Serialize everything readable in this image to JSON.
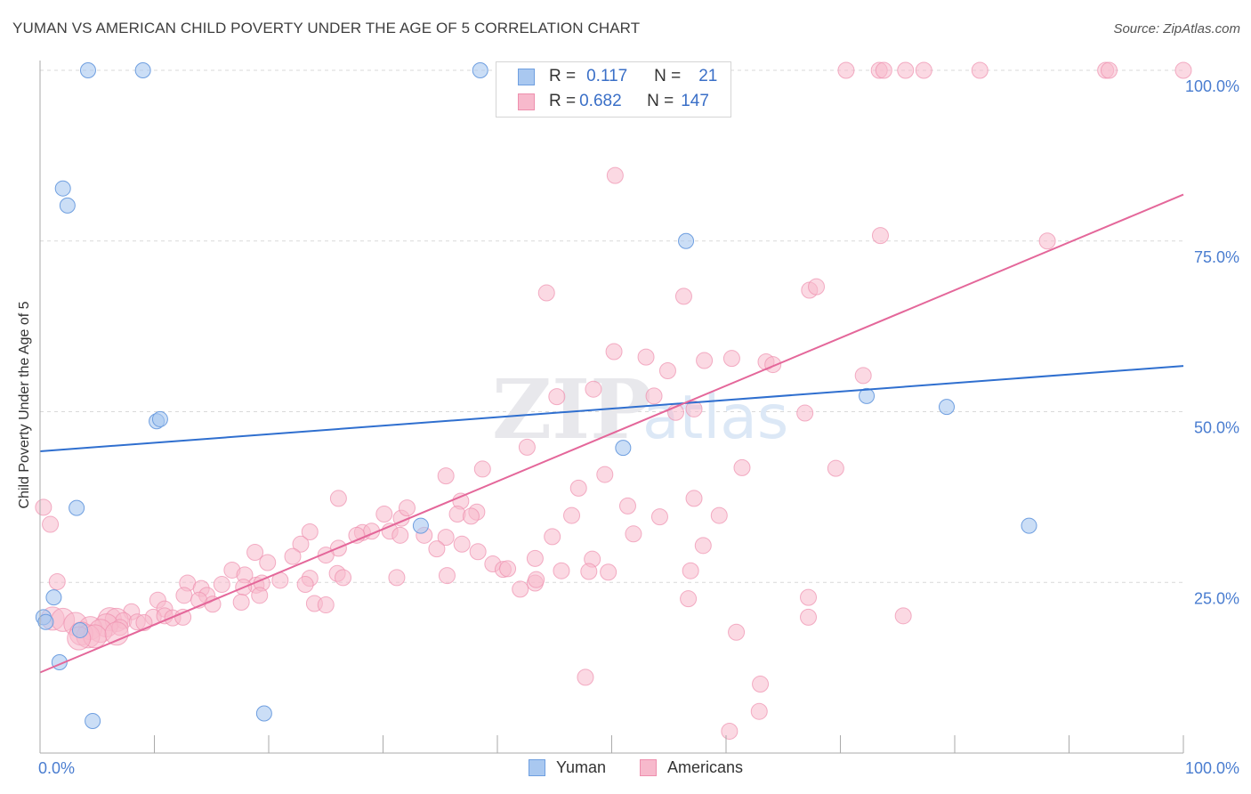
{
  "title": "YUMAN VS AMERICAN CHILD POVERTY UNDER THE AGE OF 5 CORRELATION CHART",
  "source": "Source: ZipAtlas.com",
  "watermark": {
    "zip": "ZIP",
    "atlas": "atlas"
  },
  "colors": {
    "yuman_fill": "#a9c8f0",
    "yuman_stroke": "#6f9fe0",
    "yuman_line": "#2f6fcf",
    "americans_fill": "#f7b9cc",
    "americans_stroke": "#ee8fae",
    "americans_line": "#e4679a",
    "tick_label": "#4a7dd0",
    "grid": "#d9d9d9"
  },
  "stats_legend": {
    "rows": [
      {
        "r_label": "R =",
        "r_value": "0.117",
        "n_label": "N =",
        "n_value": "21"
      },
      {
        "r_label": "R =",
        "r_value": "0.682",
        "n_label": "N =",
        "n_value": "147"
      }
    ]
  },
  "bottom_legend": {
    "yuman": "Yuman",
    "americans": "Americans"
  },
  "chart_data": {
    "type": "scatter",
    "title": "YUMAN VS AMERICAN CHILD POVERTY UNDER THE AGE OF 5 CORRELATION CHART",
    "xlabel": "",
    "ylabel": "Child Poverty Under the Age of 5",
    "xlim": [
      0,
      100
    ],
    "ylim": [
      0,
      100
    ],
    "x_tick_labels": [
      "0.0%",
      "100.0%"
    ],
    "y_tick_labels": [
      "25.0%",
      "50.0%",
      "75.0%",
      "100.0%"
    ],
    "y_ticks": [
      25,
      50,
      75,
      100
    ],
    "grid": true,
    "legend_placement": "bottom-center",
    "series": [
      {
        "name": "Yuman",
        "r": 0.117,
        "n": 21,
        "trend": [
          [
            0,
            44.2
          ],
          [
            100,
            56.7
          ]
        ],
        "points": [
          [
            4.2,
            100
          ],
          [
            9,
            100
          ],
          [
            38.5,
            100
          ],
          [
            2,
            82.7
          ],
          [
            2.4,
            80.2
          ],
          [
            56.5,
            75
          ],
          [
            10.2,
            48.6
          ],
          [
            10.5,
            48.9
          ],
          [
            72.3,
            52.3
          ],
          [
            79.3,
            50.7
          ],
          [
            51,
            44.7
          ],
          [
            3.2,
            35.9
          ],
          [
            33.3,
            33.3
          ],
          [
            86.5,
            33.3
          ],
          [
            0.3,
            19.9
          ],
          [
            0.5,
            19.2
          ],
          [
            1.2,
            22.8
          ],
          [
            3.5,
            18
          ],
          [
            1.7,
            13.3
          ],
          [
            4.6,
            4.7
          ],
          [
            19.6,
            5.8
          ]
        ]
      },
      {
        "name": "Americans",
        "r": 0.682,
        "n": 147,
        "trend": [
          [
            0,
            11.8
          ],
          [
            100,
            81.8
          ]
        ],
        "points": [
          [
            53.8,
            100
          ],
          [
            54.3,
            100
          ],
          [
            70.5,
            100
          ],
          [
            73.4,
            100
          ],
          [
            73.8,
            100
          ],
          [
            75.7,
            100
          ],
          [
            77.3,
            100
          ],
          [
            82.2,
            100
          ],
          [
            93.2,
            100
          ],
          [
            93.5,
            100
          ],
          [
            100,
            100
          ],
          [
            50.3,
            84.6
          ],
          [
            73.5,
            75.8
          ],
          [
            88.1,
            75
          ],
          [
            44.3,
            67.4
          ],
          [
            56.3,
            66.9
          ],
          [
            67.3,
            67.8
          ],
          [
            67.9,
            68.3
          ],
          [
            50.2,
            58.8
          ],
          [
            53,
            58
          ],
          [
            54.9,
            56
          ],
          [
            58.1,
            57.5
          ],
          [
            60.5,
            57.8
          ],
          [
            63.5,
            57.3
          ],
          [
            64.1,
            56.9
          ],
          [
            72,
            55.3
          ],
          [
            45.2,
            52.2
          ],
          [
            48.4,
            53.3
          ],
          [
            53.7,
            52.3
          ],
          [
            57.2,
            50.4
          ],
          [
            66.9,
            49.8
          ],
          [
            42.6,
            44.8
          ],
          [
            38.7,
            41.6
          ],
          [
            35.5,
            40.6
          ],
          [
            49.4,
            40.8
          ],
          [
            61.4,
            41.8
          ],
          [
            69.6,
            41.7
          ],
          [
            47.1,
            38.8
          ],
          [
            26.1,
            37.3
          ],
          [
            36.8,
            36.9
          ],
          [
            38.2,
            35.3
          ],
          [
            51.4,
            36.2
          ],
          [
            57.2,
            37.3
          ],
          [
            30.1,
            35
          ],
          [
            31.6,
            34.4
          ],
          [
            32.1,
            35.9
          ],
          [
            36.5,
            35
          ],
          [
            37.7,
            34.7
          ],
          [
            46.5,
            34.8
          ],
          [
            54.2,
            34.6
          ],
          [
            59.4,
            34.8
          ],
          [
            23.6,
            32.4
          ],
          [
            28.2,
            32.3
          ],
          [
            29,
            32.5
          ],
          [
            30.6,
            32.5
          ],
          [
            31.5,
            31.9
          ],
          [
            33.6,
            31.9
          ],
          [
            22.8,
            30.6
          ],
          [
            26.1,
            30
          ],
          [
            27.7,
            31.9
          ],
          [
            35.5,
            31.6
          ],
          [
            44.8,
            31.7
          ],
          [
            51.9,
            32.1
          ],
          [
            18.8,
            29.4
          ],
          [
            22.1,
            28.8
          ],
          [
            25,
            29
          ],
          [
            34.7,
            29.9
          ],
          [
            36.9,
            30.6
          ],
          [
            38.3,
            29.5
          ],
          [
            58,
            30.4
          ],
          [
            19.9,
            27.9
          ],
          [
            43.3,
            28.5
          ],
          [
            48.3,
            28.4
          ],
          [
            16.8,
            26.8
          ],
          [
            17.9,
            26.1
          ],
          [
            26,
            26.3
          ],
          [
            39.6,
            27.7
          ],
          [
            40.5,
            26.9
          ],
          [
            40.9,
            27
          ],
          [
            45.6,
            26.7
          ],
          [
            49.7,
            26.5
          ],
          [
            56.9,
            26.7
          ],
          [
            12.9,
            24.9
          ],
          [
            15.9,
            24.7
          ],
          [
            18.9,
            24.6
          ],
          [
            19.4,
            24.9
          ],
          [
            21,
            25.3
          ],
          [
            23.6,
            25.6
          ],
          [
            26.5,
            25.7
          ],
          [
            31.2,
            25.7
          ],
          [
            35.6,
            26
          ],
          [
            43.3,
            24.9
          ],
          [
            14.1,
            24.1
          ],
          [
            17.8,
            24.3
          ],
          [
            23.2,
            24.7
          ],
          [
            42,
            24
          ],
          [
            12.6,
            23.1
          ],
          [
            14.6,
            23.1
          ],
          [
            19.2,
            23.1
          ],
          [
            10.3,
            22.4
          ],
          [
            13.9,
            22.4
          ],
          [
            17.6,
            22.1
          ],
          [
            24,
            21.9
          ],
          [
            25,
            21.7
          ],
          [
            10.9,
            21.1
          ],
          [
            15.1,
            21.8
          ],
          [
            8,
            20.7
          ],
          [
            9.9,
            19.9
          ],
          [
            10.9,
            20.1
          ],
          [
            11.6,
            19.8
          ],
          [
            12.5,
            19.9
          ],
          [
            6.1,
            19.6
          ],
          [
            6.7,
            19.5
          ],
          [
            7.3,
            19.4
          ],
          [
            8.5,
            19.2
          ],
          [
            9.1,
            19.1
          ],
          [
            5.8,
            18.7
          ],
          [
            7,
            18.4
          ],
          [
            1.1,
            19.7
          ],
          [
            2,
            19.5
          ],
          [
            3.1,
            18.9
          ],
          [
            4.4,
            18.3
          ],
          [
            5.3,
            17.9
          ],
          [
            3.6,
            17.5
          ],
          [
            4.2,
            17.1
          ],
          [
            4.8,
            17.1
          ],
          [
            6.7,
            17.5
          ],
          [
            3.4,
            16.8
          ],
          [
            0.3,
            36
          ],
          [
            0.9,
            33.5
          ],
          [
            1.5,
            25.1
          ],
          [
            75.5,
            20.1
          ],
          [
            67.2,
            19.9
          ],
          [
            60.9,
            17.7
          ],
          [
            63,
            10.1
          ],
          [
            62.9,
            6.1
          ],
          [
            60.3,
            3.2
          ],
          [
            47.7,
            11.1
          ],
          [
            56.7,
            22.6
          ],
          [
            67.2,
            22.8
          ],
          [
            48,
            26.6
          ],
          [
            55.6,
            49.9
          ],
          [
            43.4,
            25.4
          ]
        ]
      }
    ]
  }
}
